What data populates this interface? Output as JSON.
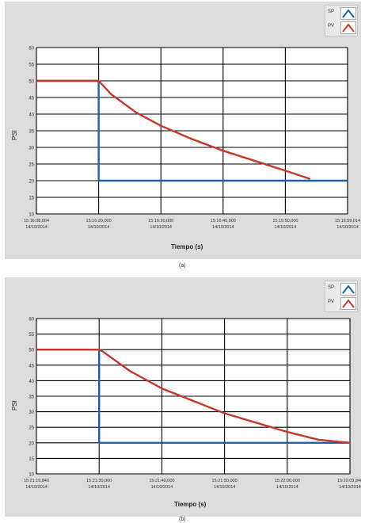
{
  "colors": {
    "sp": "#1f5fa8",
    "pv": "#c0392b",
    "grid": "#000000",
    "panel": "#dcdcdc"
  },
  "chart_data": [
    {
      "type": "line",
      "caption": "(a)",
      "ylabel": "PSI",
      "xlabel": "Tiempo (s)",
      "ylim": [
        10,
        60
      ],
      "yticks": [
        "10",
        "15",
        "20",
        "25",
        "30",
        "35",
        "40",
        "45",
        "50",
        "55",
        "60"
      ],
      "xticks": [
        {
          "l1": "15:16:08,004",
          "l2": "14/10/2014"
        },
        {
          "l1": "15:16:20,000",
          "l2": "14/10/2014"
        },
        {
          "l1": "15:16:30,000",
          "l2": "14/10/2014"
        },
        {
          "l1": "15:16:40,000",
          "l2": "14/10/2014"
        },
        {
          "l1": "15:16:50,000",
          "l2": "14/10/2014"
        },
        {
          "l1": "15:16:59,014",
          "l2": "14/10/2014"
        }
      ],
      "legend": [
        "SP",
        "PV"
      ],
      "grid": true,
      "series": [
        {
          "name": "SP",
          "x": [
            0,
            1,
            1,
            5
          ],
          "y": [
            50,
            50,
            20,
            20
          ]
        },
        {
          "name": "PV",
          "x": [
            0,
            1,
            1.2,
            1.6,
            2,
            2.5,
            3,
            3.5,
            4,
            4.4
          ],
          "y": [
            50,
            50,
            46,
            40.5,
            36.5,
            32.5,
            29,
            26,
            23,
            20.5
          ]
        }
      ]
    },
    {
      "type": "line",
      "caption": "(b)",
      "ylabel": "PSI",
      "xlabel": "Tiempo (s)",
      "ylim": [
        10,
        60
      ],
      "yticks": [
        "10",
        "15",
        "20",
        "25",
        "30",
        "35",
        "40",
        "45",
        "50",
        "55",
        "60"
      ],
      "xticks": [
        {
          "l1": "15:21:19,840",
          "l2": "14/10/2014"
        },
        {
          "l1": "15:21:30,000",
          "l2": "14/10/2014"
        },
        {
          "l1": "15:21:40,000",
          "l2": "14/10/2014"
        },
        {
          "l1": "15:21:50,000",
          "l2": "14/10/2014"
        },
        {
          "l1": "15:22:00,000",
          "l2": "14/10/2014"
        },
        {
          "l1": "15:22:09,840",
          "l2": "14/10/2014"
        }
      ],
      "legend": [
        "SP",
        "PV"
      ],
      "grid": true,
      "series": [
        {
          "name": "SP",
          "x": [
            0,
            1,
            1,
            5
          ],
          "y": [
            50,
            50,
            20,
            20
          ]
        },
        {
          "name": "PV",
          "x": [
            0,
            1,
            1.05,
            1.5,
            2,
            2.5,
            3,
            3.5,
            4,
            4.5,
            5
          ],
          "y": [
            50,
            50,
            49.5,
            43,
            37.5,
            33.5,
            29.5,
            26.5,
            23.5,
            21,
            20
          ]
        }
      ]
    }
  ]
}
